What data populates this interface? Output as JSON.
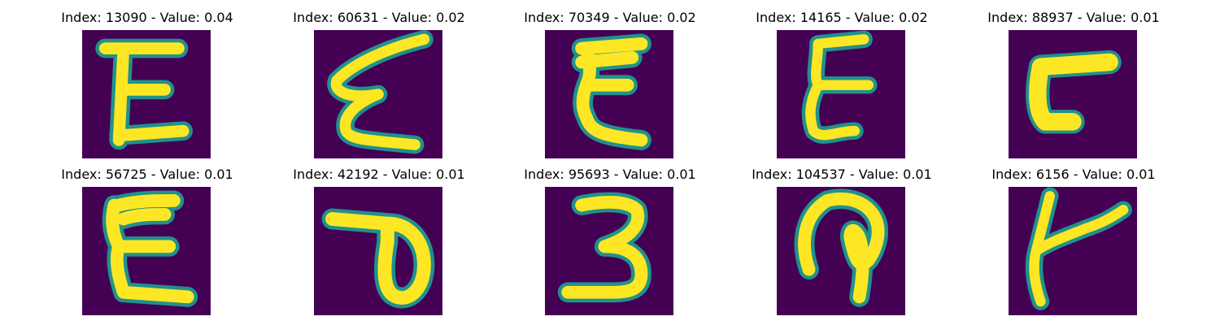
{
  "colors": {
    "background": "#440154",
    "stroke": "#fde725",
    "edge": "#21918c"
  },
  "panels": [
    {
      "title": "Index: 13090 - Value: 0.04",
      "glyph": "E-straight"
    },
    {
      "title": "Index: 60631 - Value: 0.02",
      "glyph": "E-slanted"
    },
    {
      "title": "Index: 70349 - Value: 0.02",
      "glyph": "E-curvy"
    },
    {
      "title": "Index: 14165 - Value: 0.02",
      "glyph": "E-thin"
    },
    {
      "title": "Index: 88937 - Value: 0.01",
      "glyph": "L-block"
    },
    {
      "title": "Index: 56725 - Value: 0.01",
      "glyph": "E-wide"
    },
    {
      "title": "Index: 42192 - Value: 0.01",
      "glyph": "loop-D"
    },
    {
      "title": "Index: 95693 - Value: 0.01",
      "glyph": "3-shape"
    },
    {
      "title": "Index: 104537 - Value: 0.01",
      "glyph": "P-loop"
    },
    {
      "title": "Index: 6156 - Value: 0.01",
      "glyph": "K-branch"
    }
  ]
}
